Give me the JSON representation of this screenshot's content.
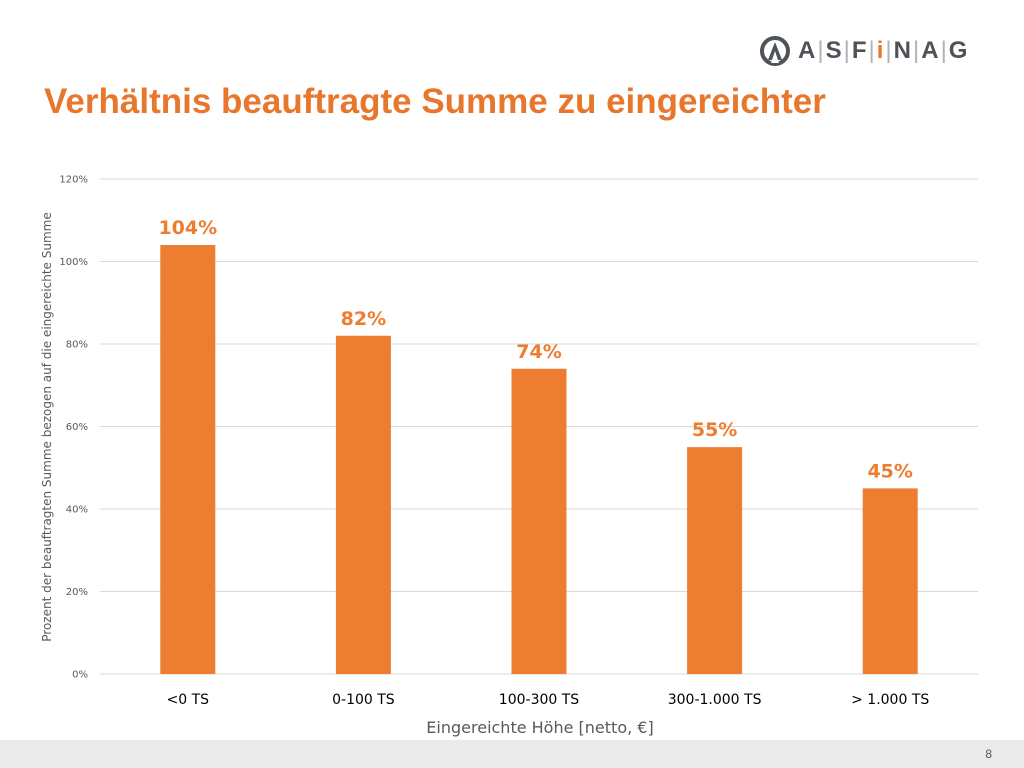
{
  "header": {
    "logo": {
      "icon": "asfinag-logo-icon",
      "letters": [
        "A",
        "S",
        "F",
        "i",
        "N",
        "A",
        "G"
      ]
    },
    "title": "Verhältnis beauftragte Summe zu eingereichter"
  },
  "footer": {
    "page_number": "8"
  },
  "colors": {
    "accent": "#e8772e",
    "bar": "#ed7d31",
    "grid": "#d9d9d9"
  },
  "chart_data": {
    "type": "bar",
    "categories": [
      "<0 TS",
      "0-100 TS",
      "100-300 TS",
      "300-1.000 TS",
      "> 1.000 TS"
    ],
    "values": [
      104,
      82,
      74,
      55,
      45
    ],
    "data_labels": [
      "104%",
      "82%",
      "74%",
      "55%",
      "45%"
    ],
    "xlabel": "Eingereichte Höhe [netto, €]",
    "ylabel": "Prozent der beauftragten Summe bezogen auf die eingereichte Summe",
    "ylim": [
      0,
      120
    ],
    "yticks": [
      0,
      20,
      40,
      60,
      80,
      100,
      120
    ],
    "ytick_labels": [
      "0%",
      "20%",
      "40%",
      "60%",
      "80%",
      "100%",
      "120%"
    ],
    "grid": true,
    "legend": "none"
  }
}
